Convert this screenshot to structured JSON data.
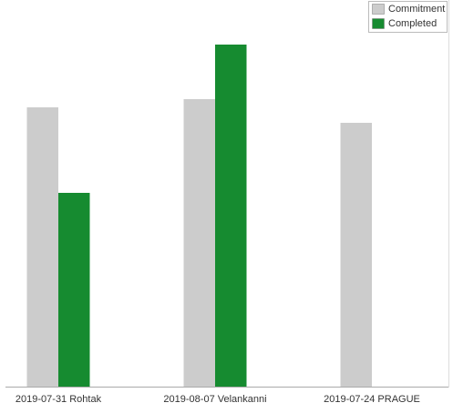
{
  "chart_data": {
    "type": "bar",
    "categories": [
      "2019-07-31 Rohtak",
      "2019-08-07 Velankanni",
      "2019-07-24 PRAGUE"
    ],
    "series": [
      {
        "name": "Commitment",
        "color": "#cccccc",
        "values": [
          307,
          316,
          290
        ]
      },
      {
        "name": "Completed",
        "color": "#168b30",
        "values": [
          213,
          376,
          null
        ]
      }
    ],
    "legend": "top-right"
  }
}
